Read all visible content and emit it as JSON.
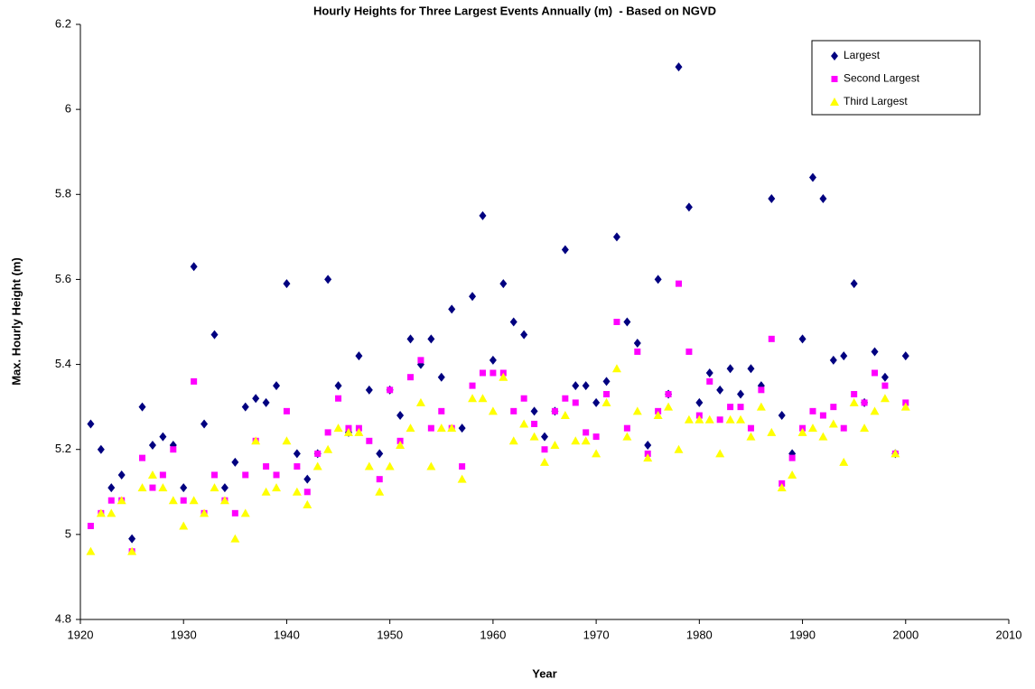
{
  "chart_data": {
    "type": "scatter",
    "title": "Hourly Heights for Three Largest Events Annually (m)  - Based on NGVD",
    "x_label": "Year",
    "y_label": "Max. Hourly Height (m)",
    "xlim": [
      1920,
      2010
    ],
    "xticks": [
      1920,
      1930,
      1940,
      1950,
      1960,
      1970,
      1980,
      1990,
      2000,
      2010
    ],
    "ylim": [
      4.8,
      6.2
    ],
    "yticks": [
      4.8,
      5,
      5.2,
      5.4,
      5.6,
      5.8,
      6,
      6.2
    ],
    "legend": "upper right",
    "x": [
      1921,
      1922,
      1923,
      1924,
      1925,
      1926,
      1927,
      1928,
      1929,
      1930,
      1931,
      1932,
      1933,
      1934,
      1935,
      1936,
      1937,
      1938,
      1939,
      1940,
      1941,
      1942,
      1943,
      1944,
      1945,
      1946,
      1947,
      1948,
      1949,
      1950,
      1951,
      1952,
      1953,
      1954,
      1955,
      1956,
      1957,
      1958,
      1959,
      1960,
      1961,
      1962,
      1963,
      1964,
      1965,
      1966,
      1967,
      1968,
      1969,
      1970,
      1971,
      1972,
      1973,
      1974,
      1975,
      1976,
      1977,
      1978,
      1979,
      1980,
      1981,
      1982,
      1983,
      1984,
      1985,
      1986,
      1987,
      1988,
      1989,
      1990,
      1991,
      1992,
      1993,
      1994,
      1995,
      1996,
      1997,
      1998,
      1999,
      2000
    ],
    "series": [
      {
        "name": "Largest",
        "color": "#000080",
        "marker": "diamond",
        "values": [
          5.26,
          5.2,
          5.11,
          5.14,
          4.99,
          5.3,
          5.21,
          5.23,
          5.21,
          5.11,
          5.63,
          5.26,
          5.47,
          5.11,
          5.17,
          5.3,
          5.32,
          5.31,
          5.35,
          5.59,
          5.19,
          5.13,
          5.19,
          5.6,
          5.35,
          5.24,
          5.42,
          5.34,
          5.19,
          5.34,
          5.28,
          5.46,
          5.4,
          5.46,
          5.37,
          5.53,
          5.25,
          5.56,
          5.75,
          5.41,
          5.59,
          5.5,
          5.47,
          5.29,
          5.23,
          5.29,
          5.67,
          5.35,
          5.35,
          5.31,
          5.36,
          5.7,
          5.5,
          5.45,
          5.21,
          5.6,
          5.33,
          6.1,
          5.77,
          5.31,
          5.38,
          5.34,
          5.39,
          5.33,
          5.39,
          5.35,
          5.79,
          5.28,
          5.19,
          5.46,
          5.84,
          5.79,
          5.41,
          5.42,
          5.59,
          5.31,
          5.43,
          5.37,
          5.19,
          5.42
        ]
      },
      {
        "name": "Second Largest",
        "color": "#ff00ff",
        "marker": "square",
        "values": [
          5.02,
          5.05,
          5.08,
          5.08,
          4.96,
          5.18,
          5.11,
          5.14,
          5.2,
          5.08,
          5.36,
          5.05,
          5.14,
          5.08,
          5.05,
          5.14,
          5.22,
          5.16,
          5.14,
          5.29,
          5.16,
          5.1,
          5.19,
          5.24,
          5.32,
          5.25,
          5.25,
          5.22,
          5.13,
          5.34,
          5.22,
          5.37,
          5.41,
          5.25,
          5.29,
          5.25,
          5.16,
          5.35,
          5.38,
          5.38,
          5.38,
          5.29,
          5.32,
          5.26,
          5.2,
          5.29,
          5.32,
          5.31,
          5.24,
          5.23,
          5.33,
          5.5,
          5.25,
          5.43,
          5.19,
          5.29,
          5.33,
          5.59,
          5.43,
          5.28,
          5.36,
          5.27,
          5.3,
          5.3,
          5.25,
          5.34,
          5.46,
          5.12,
          5.18,
          5.25,
          5.29,
          5.28,
          5.3,
          5.25,
          5.33,
          5.31,
          5.38,
          5.35,
          5.19,
          5.31
        ]
      },
      {
        "name": "Third Largest",
        "color": "#ffff00",
        "marker": "triangle",
        "values": [
          4.96,
          5.05,
          5.05,
          5.08,
          4.96,
          5.11,
          5.14,
          5.11,
          5.08,
          5.02,
          5.08,
          5.05,
          5.11,
          5.08,
          4.99,
          5.05,
          5.22,
          5.1,
          5.11,
          5.22,
          5.1,
          5.07,
          5.16,
          5.2,
          5.25,
          5.24,
          5.24,
          5.16,
          5.1,
          5.16,
          5.21,
          5.25,
          5.31,
          5.16,
          5.25,
          5.25,
          5.13,
          5.32,
          5.32,
          5.29,
          5.37,
          5.22,
          5.26,
          5.23,
          5.17,
          5.21,
          5.28,
          5.22,
          5.22,
          5.19,
          5.31,
          5.39,
          5.23,
          5.29,
          5.18,
          5.28,
          5.3,
          5.2,
          5.27,
          5.27,
          5.27,
          5.19,
          5.27,
          5.27,
          5.23,
          5.3,
          5.24,
          5.11,
          5.14,
          5.24,
          5.25,
          5.23,
          5.26,
          5.17,
          5.31,
          5.25,
          5.29,
          5.32,
          5.19,
          5.3
        ]
      }
    ]
  }
}
